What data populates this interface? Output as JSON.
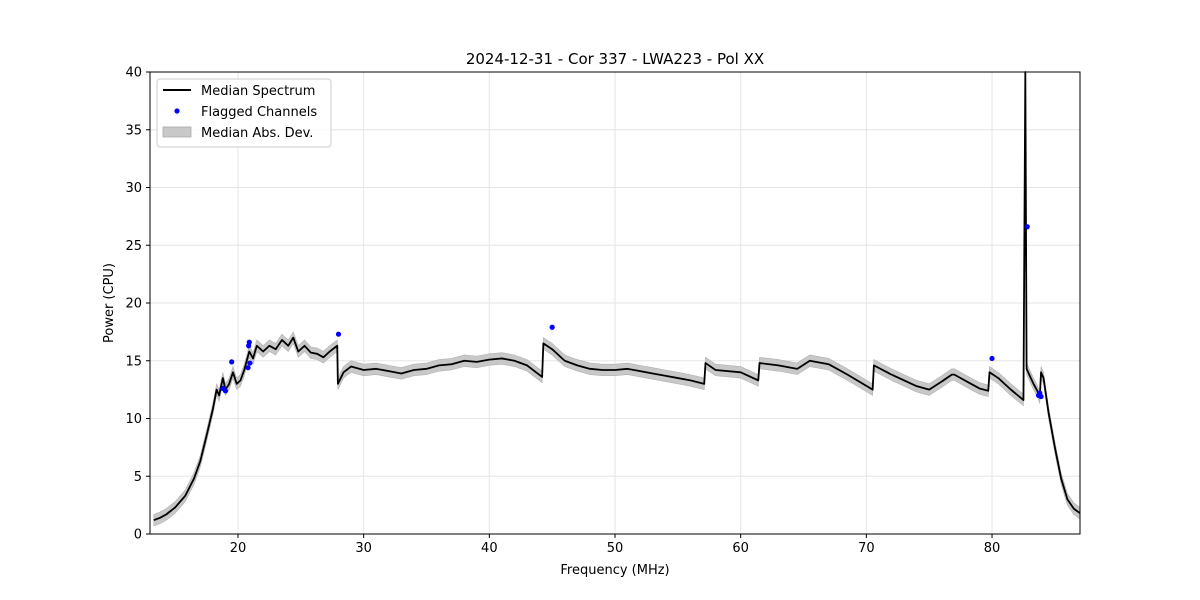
{
  "chart_data": {
    "type": "line",
    "title": "2024-12-31 - Cor 337 - LWA223 - Pol XX",
    "xlabel": "Frequency (MHz)",
    "ylabel": "Power (CPU)",
    "xlim": [
      13,
      87
    ],
    "ylim": [
      0,
      40
    ],
    "xticks": [
      20,
      30,
      40,
      50,
      60,
      70,
      80
    ],
    "yticks": [
      0,
      5,
      10,
      15,
      20,
      25,
      30,
      35,
      40
    ],
    "grid": true,
    "legend_position": "top-left",
    "legend": [
      {
        "label": "Median Spectrum",
        "kind": "line",
        "color": "#000000"
      },
      {
        "label": "Flagged Channels",
        "kind": "marker",
        "color": "#0000ff"
      },
      {
        "label": "Median Abs. Dev.",
        "kind": "patch",
        "color": "#c8c8c8"
      }
    ],
    "series": [
      {
        "name": "Median Spectrum",
        "color": "#000000",
        "band_half_width": 0.5,
        "points": [
          [
            13.3,
            1.2
          ],
          [
            13.8,
            1.4
          ],
          [
            14.3,
            1.7
          ],
          [
            15.0,
            2.3
          ],
          [
            15.8,
            3.3
          ],
          [
            16.5,
            4.8
          ],
          [
            17.0,
            6.3
          ],
          [
            17.5,
            8.5
          ],
          [
            18.0,
            10.8
          ],
          [
            18.3,
            12.5
          ],
          [
            18.5,
            12.0
          ],
          [
            18.8,
            13.5
          ],
          [
            19.0,
            12.5
          ],
          [
            19.3,
            13.0
          ],
          [
            19.6,
            14.0
          ],
          [
            19.9,
            13.0
          ],
          [
            20.2,
            13.3
          ],
          [
            20.5,
            14.2
          ],
          [
            20.9,
            15.8
          ],
          [
            21.2,
            15.2
          ],
          [
            21.5,
            16.3
          ],
          [
            22.0,
            15.8
          ],
          [
            22.5,
            16.3
          ],
          [
            23.0,
            16.0
          ],
          [
            23.5,
            16.8
          ],
          [
            24.0,
            16.3
          ],
          [
            24.4,
            17.0
          ],
          [
            24.8,
            15.8
          ],
          [
            25.3,
            16.3
          ],
          [
            25.8,
            15.7
          ],
          [
            26.3,
            15.6
          ],
          [
            26.8,
            15.3
          ],
          [
            27.3,
            15.8
          ],
          [
            27.9,
            16.3
          ],
          [
            27.95,
            13.0
          ],
          [
            28.4,
            14.0
          ],
          [
            29.0,
            14.5
          ],
          [
            30.0,
            14.2
          ],
          [
            31.0,
            14.3
          ],
          [
            32.0,
            14.1
          ],
          [
            33.0,
            13.9
          ],
          [
            34.0,
            14.2
          ],
          [
            35.0,
            14.3
          ],
          [
            36.0,
            14.6
          ],
          [
            37.0,
            14.7
          ],
          [
            38.0,
            15.0
          ],
          [
            39.0,
            14.9
          ],
          [
            40.0,
            15.1
          ],
          [
            41.0,
            15.2
          ],
          [
            42.0,
            15.0
          ],
          [
            43.0,
            14.6
          ],
          [
            44.2,
            13.6
          ],
          [
            44.3,
            16.5
          ],
          [
            45.0,
            16.0
          ],
          [
            46.0,
            15.0
          ],
          [
            47.0,
            14.6
          ],
          [
            48.0,
            14.3
          ],
          [
            49.0,
            14.2
          ],
          [
            50.0,
            14.2
          ],
          [
            51.0,
            14.3
          ],
          [
            52.0,
            14.1
          ],
          [
            53.0,
            13.9
          ],
          [
            54.0,
            13.7
          ],
          [
            55.0,
            13.5
          ],
          [
            56.0,
            13.3
          ],
          [
            57.1,
            13.0
          ],
          [
            57.2,
            14.8
          ],
          [
            58.0,
            14.2
          ],
          [
            60.0,
            14.0
          ],
          [
            61.4,
            13.3
          ],
          [
            61.5,
            14.8
          ],
          [
            63.0,
            14.6
          ],
          [
            64.5,
            14.3
          ],
          [
            65.5,
            15.0
          ],
          [
            67.0,
            14.7
          ],
          [
            68.5,
            13.8
          ],
          [
            70.5,
            12.5
          ],
          [
            70.6,
            14.6
          ],
          [
            72.0,
            13.8
          ],
          [
            73.0,
            13.3
          ],
          [
            74.0,
            12.8
          ],
          [
            75.0,
            12.5
          ],
          [
            76.0,
            13.2
          ],
          [
            76.8,
            13.8
          ],
          [
            77.0,
            13.8
          ],
          [
            78.0,
            13.2
          ],
          [
            79.0,
            12.6
          ],
          [
            79.7,
            12.4
          ],
          [
            79.8,
            14.0
          ],
          [
            80.5,
            13.5
          ],
          [
            81.5,
            12.5
          ],
          [
            82.5,
            11.6
          ],
          [
            82.65,
            40.0
          ],
          [
            82.75,
            14.3
          ],
          [
            83.3,
            13.0
          ],
          [
            83.6,
            12.4
          ],
          [
            83.8,
            11.8
          ],
          [
            83.9,
            14.0
          ],
          [
            84.1,
            13.5
          ],
          [
            84.5,
            10.5
          ],
          [
            85.0,
            7.5
          ],
          [
            85.5,
            4.8
          ],
          [
            86.0,
            3.0
          ],
          [
            86.5,
            2.2
          ],
          [
            87.0,
            1.8
          ]
        ]
      }
    ],
    "flagged_channels": [
      [
        18.8,
        12.6
      ],
      [
        19.0,
        12.4
      ],
      [
        19.5,
        14.9
      ],
      [
        20.8,
        14.4
      ],
      [
        20.85,
        16.3
      ],
      [
        20.9,
        16.6
      ],
      [
        20.95,
        14.8
      ],
      [
        28.0,
        17.3
      ],
      [
        45.0,
        17.9
      ],
      [
        80.0,
        15.2
      ],
      [
        82.8,
        26.6
      ],
      [
        83.7,
        12.0
      ],
      [
        83.8,
        12.2
      ],
      [
        83.9,
        11.9
      ]
    ]
  }
}
